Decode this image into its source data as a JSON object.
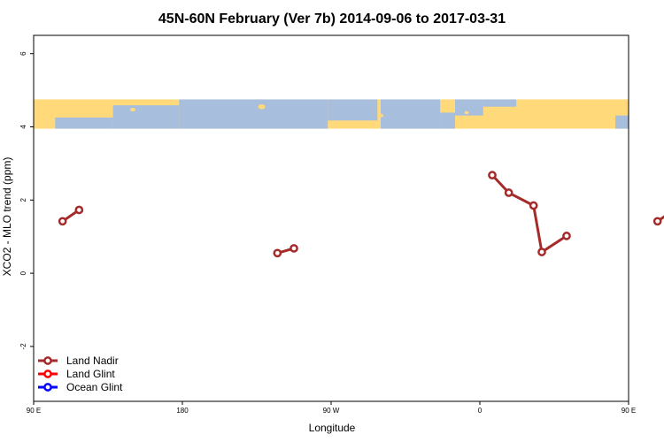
{
  "chart_data": {
    "type": "line",
    "title": "45N-60N February (Ver 7b)   2014-09-06 to 2017-03-31",
    "xlabel": "Longitude",
    "ylabel": "XCO2 - MLO trend (ppm)",
    "xlim": [
      90,
      450
    ],
    "ylim": [
      -3.5,
      6.5
    ],
    "x_ticks": [
      {
        "value": 90,
        "label": "90 E"
      },
      {
        "value": 180,
        "label": "180"
      },
      {
        "value": 270,
        "label": "90 W"
      },
      {
        "value": 360,
        "label": "0"
      },
      {
        "value": 450,
        "label": "90 E"
      },
      {
        "value": 540,
        "label": "180"
      }
    ],
    "y_ticks": [
      {
        "value": -2,
        "label": "-2"
      },
      {
        "value": 0,
        "label": "0"
      },
      {
        "value": 2,
        "label": "2"
      },
      {
        "value": 4,
        "label": "4"
      },
      {
        "value": 6,
        "label": "6"
      }
    ],
    "map_band": {
      "y_range": [
        3.95,
        4.75
      ],
      "land_color": "#FFD97A",
      "ocean_color": "#A8BEDD"
    },
    "legend_position": "bottom-left",
    "series": [
      {
        "name": "Land Nadir",
        "color": "#A52A2A",
        "segments": [
          [
            [
              107.5,
              1.42
            ],
            [
              117.5,
              1.73
            ]
          ],
          [
            [
              237.5,
              0.55
            ],
            [
              247.5,
              0.68
            ]
          ],
          [
            [
              367.5,
              2.68
            ],
            [
              377.5,
              2.2
            ],
            [
              392.5,
              1.85
            ],
            [
              397.5,
              0.58
            ],
            [
              412.5,
              1.02
            ]
          ],
          [
            [
              467.5,
              1.42
            ],
            [
              477.5,
              1.73
            ]
          ]
        ]
      },
      {
        "name": "Land Glint",
        "color": "#FF0000",
        "segments": []
      },
      {
        "name": "Ocean Glint",
        "color": "#0000FF",
        "segments": []
      }
    ]
  }
}
